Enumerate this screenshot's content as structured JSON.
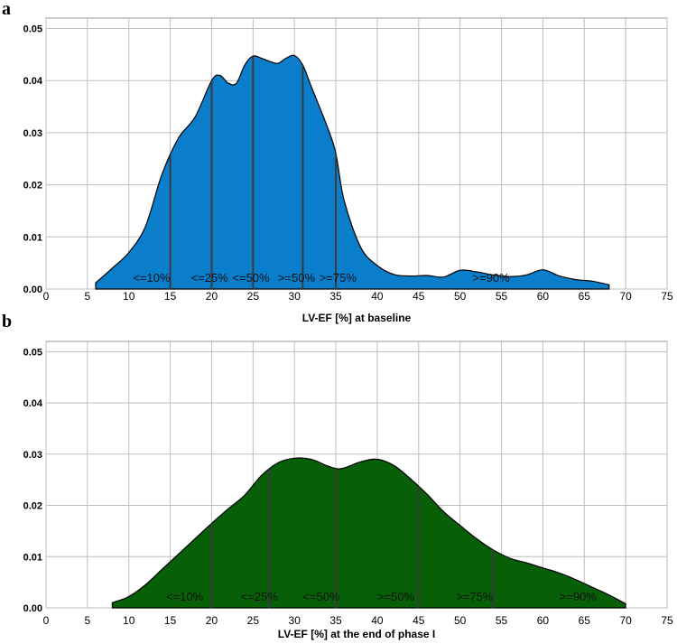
{
  "panels": [
    {
      "letter": "a"
    },
    {
      "letter": "b"
    }
  ],
  "chart_data": [
    {
      "type": "area",
      "panel": "a",
      "xlabel": "LV-EF [%] at baseline",
      "ylabel": "",
      "xlim": [
        0,
        75
      ],
      "ylim": [
        0,
        0.052
      ],
      "x_ticks": [
        "0",
        "5",
        "10",
        "15",
        "20",
        "25",
        "30",
        "35",
        "40",
        "45",
        "50",
        "55",
        "60",
        "65",
        "70",
        "75"
      ],
      "y_ticks": [
        "0.00",
        "0.01",
        "0.02",
        "0.03",
        "0.04",
        "0.05"
      ],
      "grid": true,
      "fill_color": "#0a7ecb",
      "x": [
        6,
        8,
        10,
        12,
        14,
        16,
        18,
        20,
        21,
        22,
        23,
        24,
        25,
        26,
        27,
        28,
        29,
        30,
        31,
        32,
        34,
        35,
        36,
        38,
        40,
        42,
        44,
        46,
        48,
        50,
        52,
        54,
        56,
        58,
        60,
        62,
        64,
        66,
        68
      ],
      "y": [
        0.0012,
        0.004,
        0.007,
        0.012,
        0.022,
        0.029,
        0.033,
        0.04,
        0.041,
        0.0395,
        0.0395,
        0.043,
        0.0447,
        0.0443,
        0.0437,
        0.0433,
        0.0443,
        0.0448,
        0.043,
        0.039,
        0.031,
        0.026,
        0.017,
        0.008,
        0.0045,
        0.0028,
        0.0025,
        0.0026,
        0.0023,
        0.0036,
        0.0033,
        0.0027,
        0.0024,
        0.0027,
        0.0037,
        0.0025,
        0.0018,
        0.0015,
        0.0008
      ],
      "quantile_lines": [
        15,
        20,
        25,
        31,
        35
      ],
      "quantile_labels": [
        {
          "text": "<=10%",
          "x": 10.5
        },
        {
          "text": "<=25%",
          "x": 17.5
        },
        {
          "text": "<=50%",
          "x": 22.5
        },
        {
          "text": ">=50%",
          "x": 28.0
        },
        {
          "text": ">=75%",
          "x": 33.0
        },
        {
          "text": ">=90%",
          "x": 51.5
        }
      ]
    },
    {
      "type": "area",
      "panel": "b",
      "xlabel": "LV-EF [%] at the end of phase I",
      "ylabel": "",
      "xlim": [
        0,
        75
      ],
      "ylim": [
        0,
        0.052
      ],
      "x_ticks": [
        "0",
        "5",
        "10",
        "15",
        "20",
        "25",
        "30",
        "35",
        "40",
        "45",
        "50",
        "55",
        "60",
        "65",
        "70",
        "75"
      ],
      "y_ticks": [
        "0.00",
        "0.01",
        "0.02",
        "0.03",
        "0.04",
        "0.05"
      ],
      "grid": true,
      "fill_color": "#075f07",
      "x": [
        8,
        10,
        12,
        14,
        16,
        18,
        20,
        22,
        24,
        26,
        28,
        30,
        32,
        34,
        35,
        36,
        38,
        40,
        42,
        44,
        46,
        48,
        50,
        52,
        54,
        56,
        58,
        60,
        62,
        64,
        66,
        68,
        70
      ],
      "y": [
        0.001,
        0.0022,
        0.0045,
        0.0075,
        0.0105,
        0.0135,
        0.0165,
        0.0193,
        0.022,
        0.0258,
        0.0283,
        0.0292,
        0.029,
        0.0277,
        0.0272,
        0.0273,
        0.0285,
        0.029,
        0.0278,
        0.0252,
        0.0222,
        0.0188,
        0.0161,
        0.0135,
        0.0113,
        0.0097,
        0.0088,
        0.0078,
        0.0068,
        0.0055,
        0.004,
        0.0025,
        0.0008
      ],
      "quantile_lines": [
        20,
        27,
        35,
        45,
        54
      ],
      "quantile_labels": [
        {
          "text": "<=10%",
          "x": 14.5
        },
        {
          "text": "<=25%",
          "x": 23.5
        },
        {
          "text": "<=50%",
          "x": 31.0
        },
        {
          "text": ">=50%",
          "x": 40.0
        },
        {
          "text": ">=75%",
          "x": 49.5
        },
        {
          "text": ">=90%",
          "x": 62.0
        }
      ]
    }
  ]
}
